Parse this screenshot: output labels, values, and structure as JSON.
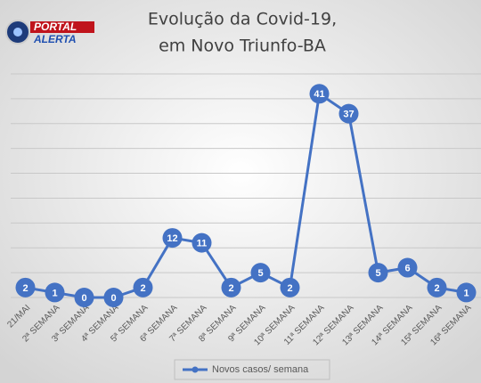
{
  "logo": {
    "top": "PORTAL",
    "bottom": "ALERTA"
  },
  "chart_data": {
    "type": "line",
    "title": [
      "Evolução da Covid-19,",
      "em Novo Triunfo-BA"
    ],
    "categories": [
      "21/MAI",
      "2ª SEMANA",
      "3ª SEMANA",
      "4ª SEMANA",
      "5ª SEMANA",
      "6ª SEMANA",
      "7ª SEMANA",
      "8ª SEMANA",
      "9ª SEMANA",
      "10ª SEMANA",
      "11ª SEMANA",
      "12ª SEMANA",
      "13ª SEMANA",
      "14ª SEMANA",
      "15ª SEMANA",
      "16ª SEMANA"
    ],
    "series": [
      {
        "name": "Novos casos/ semana",
        "color": "#4472c4",
        "values": [
          2,
          1,
          0,
          0,
          2,
          12,
          11,
          2,
          5,
          2,
          41,
          37,
          5,
          6,
          2,
          1
        ]
      }
    ],
    "ylim": [
      0,
      45
    ],
    "yticks": [
      0,
      5,
      10,
      15,
      20,
      25,
      30,
      35,
      40,
      45
    ],
    "grid": true,
    "legend": "bottom"
  }
}
